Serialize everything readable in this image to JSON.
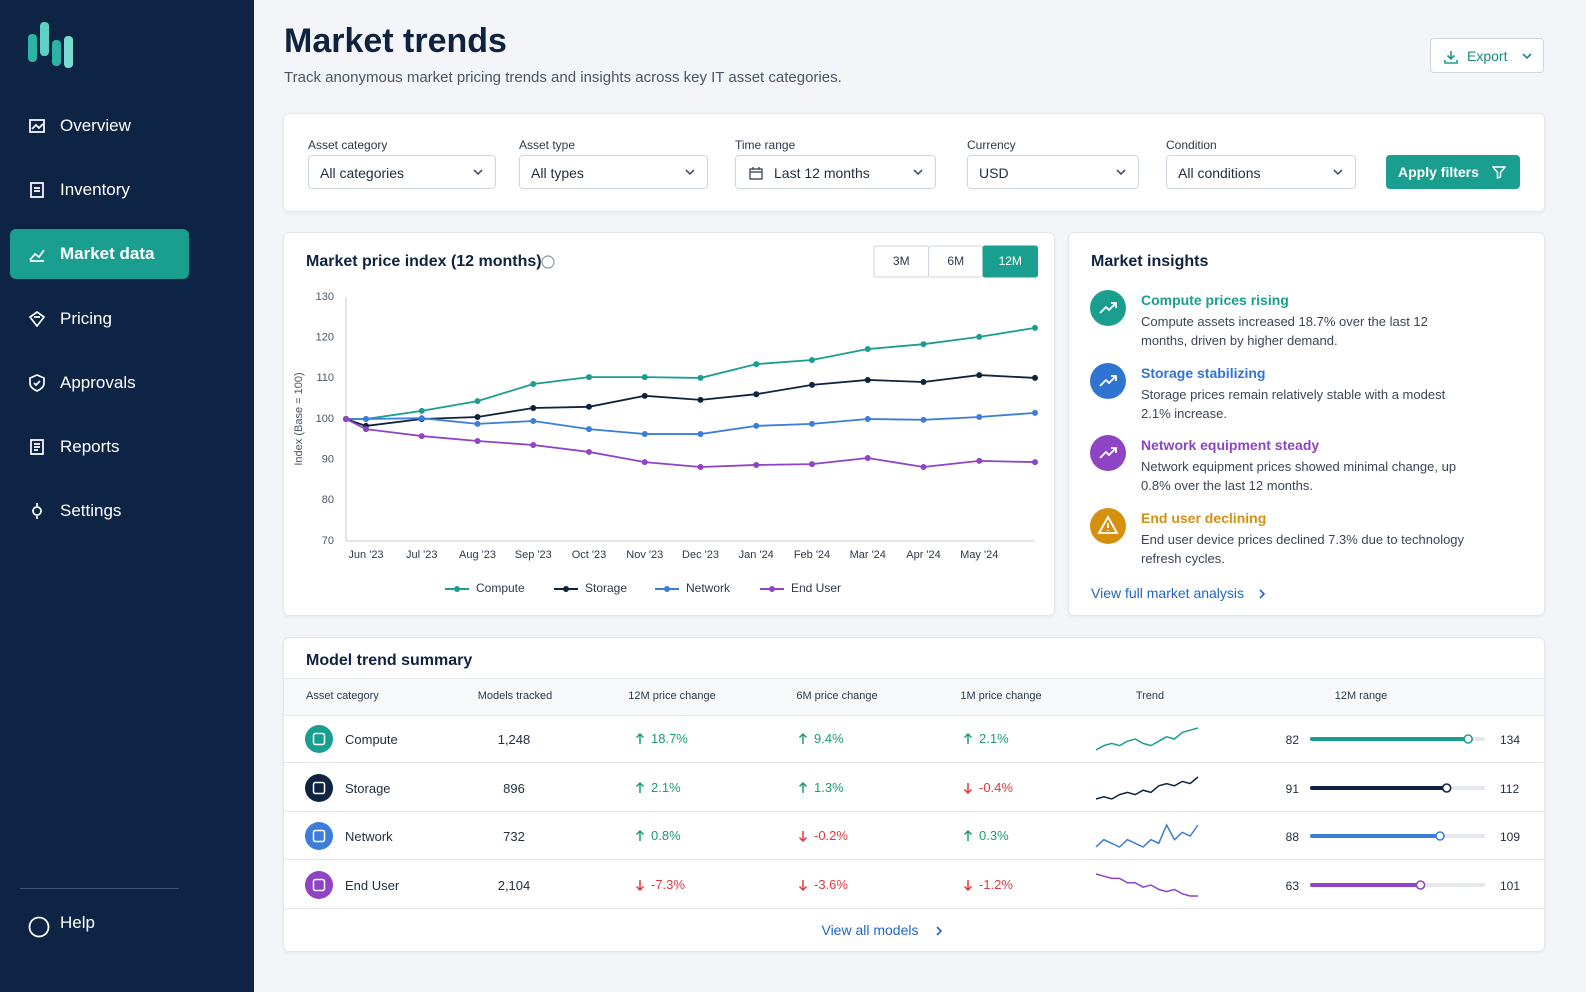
{
  "sidebar": {
    "nav": [
      "Overview",
      "Inventory",
      "Market data",
      "Pricing",
      "Approvals",
      "Reports",
      "Settings"
    ],
    "active": 2,
    "help": "Help"
  },
  "header": {
    "title": "Market trends",
    "subtitle": "Track anonymous market pricing trends and insights across key IT asset categories.",
    "export": "Export"
  },
  "filters": {
    "items": [
      {
        "label": "Asset category",
        "value": "All categories"
      },
      {
        "label": "Asset type",
        "value": "All types"
      },
      {
        "label": "Time range",
        "value": "Last 12 months"
      },
      {
        "label": "Currency",
        "value": "USD"
      },
      {
        "label": "Condition",
        "value": "All conditions"
      }
    ],
    "apply": "Apply filters"
  },
  "chart_data": {
    "type": "line",
    "title": "Market price index (12 months)",
    "ranges": [
      "3M",
      "6M",
      "12M"
    ],
    "active_range": 2,
    "ylabel": "Index (Base = 100)",
    "categories": [
      null,
      "Jun '23",
      "Jul '23",
      "Aug '23",
      "Sep '23",
      "Oct '23",
      "Nov '23",
      "Dec '23",
      "Jan '24",
      "Feb '24",
      "Mar '24",
      "Apr '24",
      "May '24",
      null
    ],
    "series": [
      {
        "name": "Compute",
        "color": "#1a9e8f",
        "values": [
          100,
          100,
          102,
          104.4,
          108.6,
          110.3,
          110.3,
          110.1,
          113.5,
          114.5,
          117.2,
          118.4,
          120.2,
          122.4
        ]
      },
      {
        "name": "Storage",
        "color": "#0f2340",
        "values": [
          100,
          98.3,
          100,
          100.5,
          102.7,
          103,
          105.7,
          104.7,
          106.1,
          108.4,
          109.6,
          109.1,
          110.8,
          110.1
        ]
      },
      {
        "name": "Network",
        "color": "#3b7dd8",
        "values": [
          100,
          100,
          100.2,
          98.8,
          99.5,
          97.5,
          96.3,
          96.3,
          98.3,
          98.8,
          100,
          99.8,
          100.5,
          101.5
        ]
      },
      {
        "name": "End User",
        "color": "#8e44c4",
        "values": [
          100,
          97.5,
          95.8,
          94.6,
          93.6,
          91.9,
          89.4,
          88.2,
          88.7,
          88.9,
          90.4,
          88.2,
          89.7,
          89.4
        ]
      }
    ],
    "ylim": [
      70,
      130
    ],
    "yticks": [
      70,
      80,
      90,
      100,
      110,
      120,
      130
    ],
    "grid": false
  },
  "insights": {
    "title": "Market insights",
    "items": [
      {
        "title": "Compute prices rising",
        "text": "Compute assets increased 18.7% over the last 12 months, driven by higher demand.",
        "color": "#1a9e8f"
      },
      {
        "title": "Storage stabilizing",
        "text": "Storage prices remain relatively stable with a modest 2.1% increase.",
        "color": "#2f74d0"
      },
      {
        "title": "Network equipment steady",
        "text": "Network equipment prices showed minimal change, up 0.8% over the last 12 months.",
        "color": "#8e44c4"
      },
      {
        "title": "End user declining",
        "text": "End user device prices declined 7.3% due to technology refresh cycles.",
        "color": "#d4910f"
      }
    ],
    "link": "View full market analysis"
  },
  "table": {
    "title": "Model trend summary",
    "columns": [
      "Asset category",
      "Models tracked",
      "12M price change",
      "6M price change",
      "1M price change",
      "Trend",
      "12M range"
    ],
    "rows": [
      {
        "category": "Compute",
        "models": "1,248",
        "change12": "18.7%",
        "change6": "9.4%",
        "change1": "2.1%",
        "color": "#1a9e8f",
        "trend": [
          2,
          3,
          3.5,
          3,
          4,
          4.5,
          3.5,
          3,
          4,
          5,
          4.5,
          6,
          6.5,
          7
        ],
        "min": 82,
        "max": 134,
        "current": 129
      },
      {
        "category": "Storage",
        "models": "896",
        "change12": "2.1%",
        "change6": "1.3%",
        "change1": "-0.4%",
        "color": "#0f2340",
        "trend": [
          1,
          1.5,
          1,
          2,
          2.5,
          2,
          3,
          2.5,
          4,
          4.5,
          4,
          5,
          4.5,
          6
        ],
        "min": 91,
        "max": 112,
        "current": 107.4
      },
      {
        "category": "Network",
        "models": "732",
        "change12": "0.8%",
        "change6": "-0.2%",
        "change1": "0.3%",
        "color": "#3b7dd8",
        "trend": [
          2,
          3,
          2.5,
          2,
          3,
          2.5,
          2,
          3,
          2.5,
          5,
          3,
          4,
          3.5,
          5
        ],
        "min": 88,
        "max": 109,
        "current": 103.6
      },
      {
        "category": "End User",
        "models": "2,104",
        "change12": "-7.3%",
        "change6": "-3.6%",
        "change1": "-1.2%",
        "color": "#8e44c4",
        "trend": [
          7,
          6.5,
          6,
          6,
          5,
          5,
          4,
          4.5,
          3.5,
          3,
          3.5,
          2.5,
          2,
          2
        ],
        "min": 63,
        "max": 101,
        "current": 87
      }
    ],
    "link": "View all models"
  }
}
